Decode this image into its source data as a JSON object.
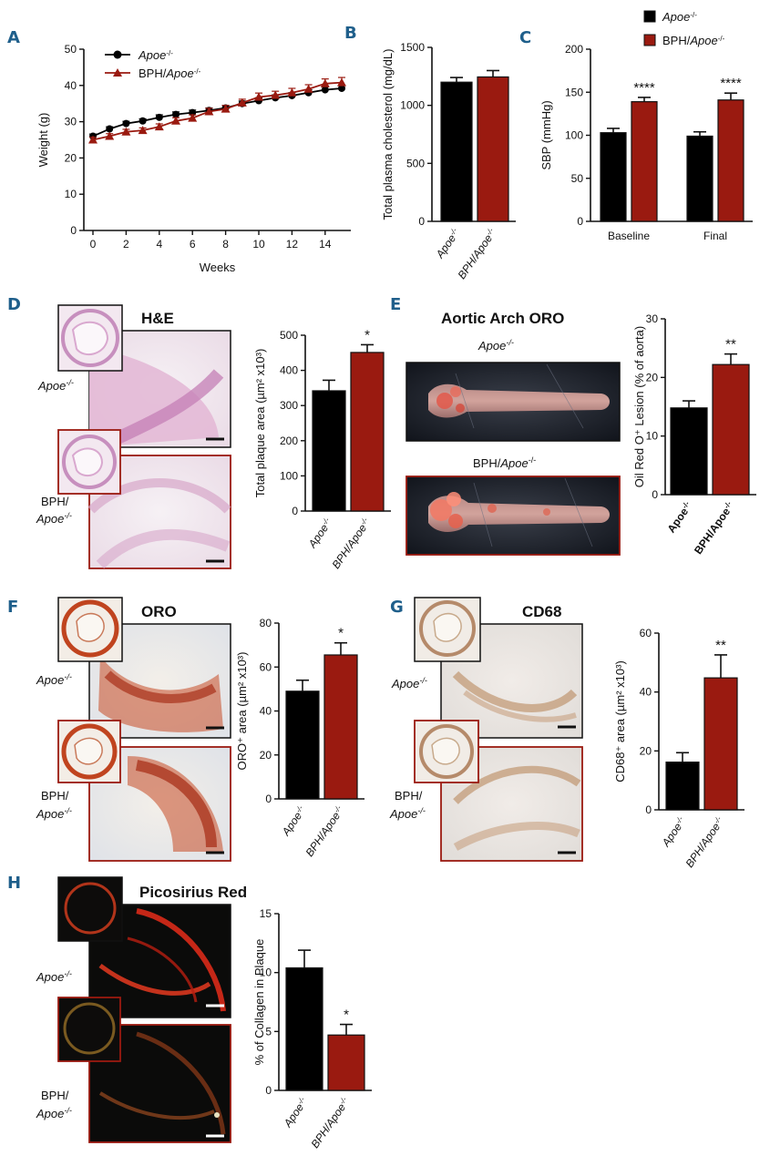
{
  "colors": {
    "black": "#000000",
    "red": "#9a1a10",
    "panel_label": "#1f5f8b",
    "frame_red": "#9a1a10"
  },
  "panels": {
    "A": {
      "label": "A"
    },
    "B": {
      "label": "B"
    },
    "C": {
      "label": "C"
    },
    "D": {
      "label": "D",
      "title": "H&E",
      "apoe_label": "Apoe",
      "bph_label_1": "BPH/",
      "bph_label_2": "Apoe"
    },
    "E": {
      "label": "E",
      "title": "Aortic Arch ORO",
      "apoe_label": "Apoe",
      "bph_label": "BPH/",
      "bph_label_2": "Apoe"
    },
    "F": {
      "label": "F",
      "title": "ORO",
      "apoe_label": "Apoe",
      "bph_label_1": "BPH/",
      "bph_label_2": "Apoe"
    },
    "G": {
      "label": "G",
      "title": "CD68",
      "apoe_label": "Apoe",
      "bph_label_1": "BPH/",
      "bph_label_2": "Apoe"
    },
    "H": {
      "label": "H",
      "title": "Picosirius Red",
      "apoe_label": "Apoe",
      "bph_label_1": "BPH/",
      "bph_label_2": "Apoe"
    }
  },
  "superscript": "-/-",
  "chart_data": [
    {
      "id": "A",
      "type": "line",
      "xlabel": "Weeks",
      "ylabel": "Weight (g)",
      "xlim": [
        0,
        15
      ],
      "ylim": [
        0,
        50
      ],
      "xticks": [
        "0",
        "2",
        "4",
        "6",
        "8",
        "10",
        "12",
        "14"
      ],
      "yticks": [
        "0",
        "10",
        "20",
        "30",
        "40",
        "50"
      ],
      "x": [
        0,
        1,
        2,
        3,
        4,
        5,
        6,
        7,
        8,
        9,
        10,
        11,
        12,
        13,
        14,
        15
      ],
      "legend_placement": "top-left",
      "series": [
        {
          "name": "Apoe",
          "name_sup": "-/-",
          "marker": "circle",
          "color": "#000000",
          "values": [
            26,
            28,
            29.5,
            30.2,
            31.2,
            32,
            32.5,
            33.1,
            33.8,
            35,
            35.8,
            36.6,
            37.2,
            38,
            38.8,
            39.2
          ],
          "err": [
            0.6,
            0.6,
            0.6,
            0.6,
            0.7,
            0.7,
            0.7,
            0.7,
            0.7,
            0.7,
            0.8,
            0.8,
            0.8,
            0.8,
            0.8,
            0.9
          ]
        },
        {
          "name": "BPH/Apoe",
          "name_sup": "-/-",
          "marker": "triangle",
          "color": "#9a1a10",
          "values": [
            25,
            26,
            27.2,
            27.6,
            28.6,
            30.2,
            31,
            32.8,
            33.5,
            35.2,
            36.8,
            37.3,
            38,
            39,
            40.5,
            40.8
          ],
          "err": [
            0.7,
            0.7,
            0.7,
            0.7,
            0.8,
            0.9,
            0.9,
            0.9,
            1.0,
            1.0,
            1.1,
            1.1,
            1.2,
            1.2,
            1.3,
            1.4
          ]
        }
      ]
    },
    {
      "id": "B",
      "type": "bar",
      "ylabel": "Total plasma cholesterol (mg/dL)",
      "ylim": [
        0,
        1500
      ],
      "yticks": [
        "0",
        "500",
        "1000",
        "1500"
      ],
      "categories": [
        "Apoe",
        "BPH/Apoe"
      ],
      "categories_sup": "-/-",
      "values": [
        1200,
        1245
      ],
      "err": [
        40,
        55
      ],
      "colors": [
        "#000000",
        "#9a1a10"
      ]
    },
    {
      "id": "C",
      "type": "bar",
      "ylabel": "SBP (mmHg)",
      "ylim": [
        0,
        200
      ],
      "yticks": [
        "0",
        "50",
        "100",
        "150",
        "200"
      ],
      "categories": [
        "Baseline",
        "Final"
      ],
      "legend_placement": "top",
      "series": [
        {
          "name": "Apoe",
          "name_sup": "-/-",
          "color": "#000000",
          "values": [
            103,
            99
          ],
          "err": [
            5,
            5
          ]
        },
        {
          "name": "BPH/Apoe",
          "name_sup": "-/-",
          "color": "#9a1a10",
          "values": [
            139,
            141
          ],
          "err": [
            5,
            8
          ]
        }
      ],
      "annotations": [
        "****",
        "****"
      ]
    },
    {
      "id": "D",
      "type": "bar",
      "ylabel": "Total plaque area (µm² x10³)",
      "ylim": [
        0,
        500
      ],
      "yticks": [
        "0",
        "100",
        "200",
        "300",
        "400",
        "500"
      ],
      "categories": [
        "Apoe",
        "BPH/Apoe"
      ],
      "categories_sup": "-/-",
      "values": [
        342,
        451
      ],
      "err": [
        30,
        22
      ],
      "colors": [
        "#000000",
        "#9a1a10"
      ],
      "annotation": "*"
    },
    {
      "id": "E",
      "type": "bar",
      "ylabel": "Oil Red O⁺ Lesion (% of aorta)",
      "ylim": [
        0,
        30
      ],
      "yticks": [
        "0",
        "10",
        "20",
        "30"
      ],
      "categories": [
        "Apoe",
        "BPH/Apoe"
      ],
      "categories_sup": "-/-",
      "categories_bold": true,
      "values": [
        14.8,
        22.2
      ],
      "err": [
        1.2,
        1.8
      ],
      "colors": [
        "#000000",
        "#9a1a10"
      ],
      "annotation": "**"
    },
    {
      "id": "F",
      "type": "bar",
      "ylabel": "ORO⁺ area (µm² x10³)",
      "ylim": [
        0,
        80
      ],
      "yticks": [
        "0",
        "20",
        "40",
        "60",
        "80"
      ],
      "categories": [
        "Apoe",
        "BPH/Apoe"
      ],
      "categories_sup": "-/-",
      "values": [
        49,
        65.5
      ],
      "err": [
        5,
        5.5
      ],
      "colors": [
        "#000000",
        "#9a1a10"
      ],
      "annotation": "*"
    },
    {
      "id": "G",
      "type": "bar",
      "ylabel": "CD68⁺ area (µm² x10³)",
      "ylim": [
        0,
        60
      ],
      "yticks": [
        "0",
        "20",
        "40",
        "60"
      ],
      "categories": [
        "Apoe",
        "BPH/Apoe"
      ],
      "categories_sup": "-/-",
      "values": [
        16.2,
        44.8
      ],
      "err": [
        3.2,
        7.8
      ],
      "colors": [
        "#000000",
        "#9a1a10"
      ],
      "annotation": "**"
    },
    {
      "id": "H",
      "type": "bar",
      "ylabel": "% of Collagen in Plaque",
      "ylim": [
        0,
        15
      ],
      "yticks": [
        "0",
        "5",
        "10",
        "15"
      ],
      "categories": [
        "Apoe",
        "BPH/Apoe"
      ],
      "categories_sup": "-/-",
      "values": [
        10.4,
        4.7
      ],
      "err": [
        1.5,
        0.9
      ],
      "colors": [
        "#000000",
        "#9a1a10"
      ],
      "annotation": "*"
    }
  ]
}
